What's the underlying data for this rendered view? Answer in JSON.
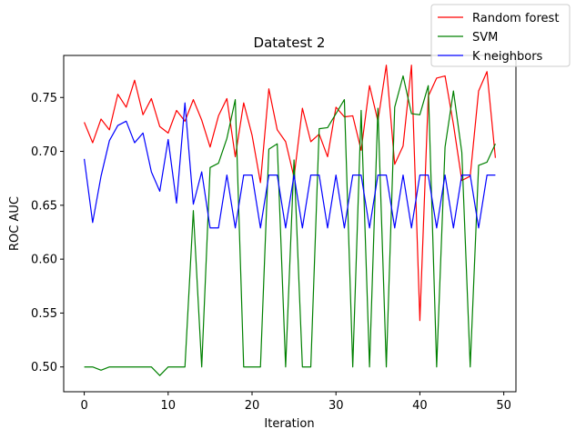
{
  "chart_data": {
    "type": "line",
    "title": "Datatest 2",
    "xlabel": "Iteration",
    "ylabel": "ROC AUC",
    "xlim": [
      -2.45,
      51.45
    ],
    "ylim": [
      0.477,
      0.789
    ],
    "xticks": [
      0,
      10,
      20,
      30,
      40,
      50
    ],
    "yticks": [
      0.5,
      0.55,
      0.6,
      0.65,
      0.7,
      0.75
    ],
    "ytick_labels": [
      "0.50",
      "0.55",
      "0.60",
      "0.65",
      "0.70",
      "0.75"
    ],
    "grid": false,
    "legend_position": "top-right",
    "x": [
      0,
      1,
      2,
      3,
      4,
      5,
      6,
      7,
      8,
      9,
      10,
      11,
      12,
      13,
      14,
      15,
      16,
      17,
      18,
      19,
      20,
      21,
      22,
      23,
      24,
      25,
      26,
      27,
      28,
      29,
      30,
      31,
      32,
      33,
      34,
      35,
      36,
      37,
      38,
      39,
      40,
      41,
      42,
      43,
      44,
      45,
      46,
      47,
      48,
      49
    ],
    "series": [
      {
        "name": "Random forest",
        "color": "#ff0000",
        "values": [
          0.727,
          0.708,
          0.73,
          0.72,
          0.753,
          0.741,
          0.766,
          0.734,
          0.749,
          0.723,
          0.717,
          0.738,
          0.728,
          0.748,
          0.729,
          0.704,
          0.733,
          0.749,
          0.695,
          0.745,
          0.715,
          0.671,
          0.758,
          0.72,
          0.709,
          0.676,
          0.74,
          0.709,
          0.716,
          0.695,
          0.741,
          0.732,
          0.733,
          0.701,
          0.761,
          0.728,
          0.78,
          0.688,
          0.705,
          0.78,
          0.543,
          0.751,
          0.768,
          0.77,
          0.725,
          0.673,
          0.677,
          0.756,
          0.774,
          0.694
        ]
      },
      {
        "name": "SVM",
        "color": "#008000",
        "values": [
          0.5,
          0.5,
          0.497,
          0.5,
          0.5,
          0.5,
          0.5,
          0.5,
          0.5,
          0.492,
          0.5,
          0.5,
          0.5,
          0.645,
          0.5,
          0.685,
          0.689,
          0.712,
          0.748,
          0.5,
          0.5,
          0.5,
          0.702,
          0.707,
          0.5,
          0.692,
          0.5,
          0.5,
          0.721,
          0.722,
          0.735,
          0.748,
          0.5,
          0.738,
          0.5,
          0.74,
          0.5,
          0.741,
          0.77,
          0.735,
          0.734,
          0.761,
          0.5,
          0.704,
          0.756,
          0.699,
          0.5,
          0.687,
          0.69,
          0.707
        ]
      },
      {
        "name": "K neighbors",
        "color": "#0000ff",
        "values": [
          0.693,
          0.634,
          0.677,
          0.71,
          0.724,
          0.728,
          0.708,
          0.717,
          0.681,
          0.663,
          0.711,
          0.652,
          0.745,
          0.651,
          0.681,
          0.629,
          0.629,
          0.678,
          0.629,
          0.678,
          0.678,
          0.629,
          0.678,
          0.678,
          0.629,
          0.678,
          0.629,
          0.678,
          0.678,
          0.629,
          0.678,
          0.629,
          0.678,
          0.678,
          0.629,
          0.678,
          0.678,
          0.629,
          0.678,
          0.629,
          0.678,
          0.678,
          0.629,
          0.678,
          0.629,
          0.678,
          0.678,
          0.629,
          0.678,
          0.678
        ]
      }
    ]
  }
}
